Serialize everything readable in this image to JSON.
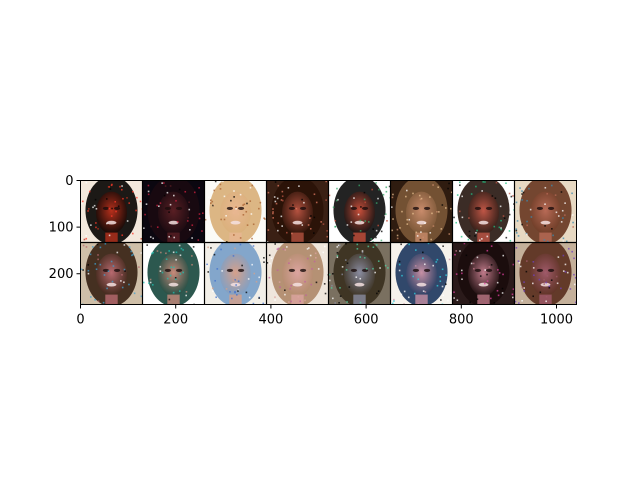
{
  "figure": {
    "xticks": [
      0,
      200,
      400,
      600,
      800,
      1000
    ],
    "yticks": [
      0,
      100,
      200
    ],
    "xlim": [
      0,
      1042
    ],
    "ylim": [
      0,
      266
    ],
    "grid": {
      "rows": 2,
      "cols": 8
    },
    "tiles": [
      {
        "bg": "#f3e8dc",
        "hair": "#0a0604",
        "skin": "#b7301c",
        "noise": "#ff3a2a"
      },
      {
        "bg": "#0b0710",
        "hair": "#1a0a10",
        "skin": "#5a1f24",
        "noise": "#d12040"
      },
      {
        "bg": "#fbfbf7",
        "hair": "#d9b07a",
        "skin": "#e9b792",
        "noise": "#a86030"
      },
      {
        "bg": "#3a2014",
        "hair": "#2a1208",
        "skin": "#b55240",
        "noise": "#e07a60"
      },
      {
        "bg": "#ffffff",
        "hair": "#101010",
        "skin": "#c64e3a",
        "noise": "#38a86a"
      },
      {
        "bg": "#2f1c10",
        "hair": "#7a5636",
        "skin": "#c98c6c",
        "noise": "#e8c090"
      },
      {
        "bg": "#ffffff",
        "hair": "#2a1a14",
        "skin": "#c05646",
        "noise": "#20c080"
      },
      {
        "bg": "#e7d9c3",
        "hair": "#6a3a24",
        "skin": "#b86a56",
        "noise": "#3a8ab0"
      },
      {
        "bg": "#cfbfa8",
        "hair": "#3a2416",
        "skin": "#b86a70",
        "noise": "#40a0d0"
      },
      {
        "bg": "#ffffff",
        "hair": "#1a4a40",
        "skin": "#c88a7a",
        "noise": "#20c0b0"
      },
      {
        "bg": "#f2efe8",
        "hair": "#7aa0c8",
        "skin": "#d6a08a",
        "noise": "#4070d0"
      },
      {
        "bg": "#efe6dc",
        "hair": "#b08a6a",
        "skin": "#dca4a0",
        "noise": "#c060a0"
      },
      {
        "bg": "#7a7060",
        "hair": "#3a3020",
        "skin": "#8a8ca0",
        "noise": "#50d0a0"
      },
      {
        "bg": "#f6f2ec",
        "hair": "#203a60",
        "skin": "#c890a4",
        "noise": "#30d0e0"
      },
      {
        "bg": "#2a1a1a",
        "hair": "#1a0c0c",
        "skin": "#c07a8a",
        "noise": "#e040a0"
      },
      {
        "bg": "#c4b09a",
        "hair": "#5a3020",
        "skin": "#a05a6a",
        "noise": "#7040c0"
      }
    ]
  }
}
